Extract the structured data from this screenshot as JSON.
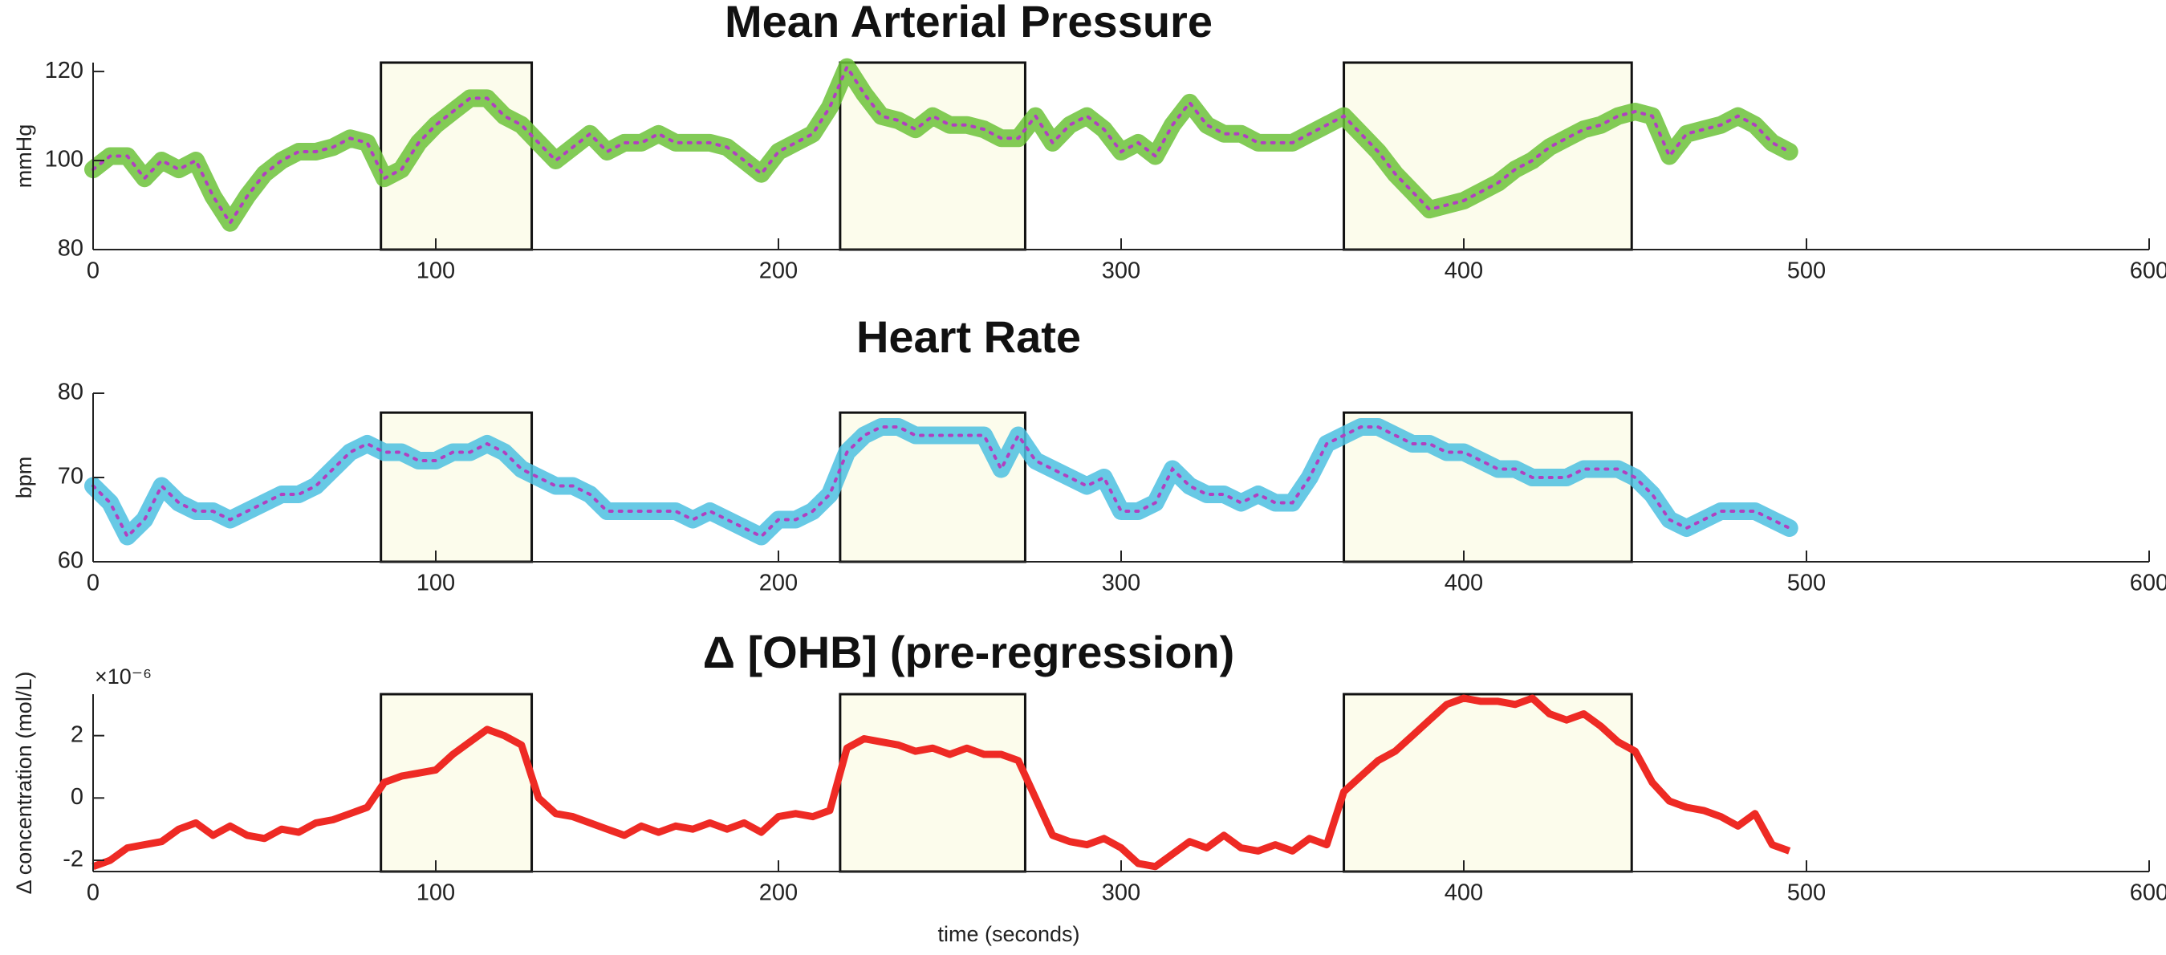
{
  "chart_data": [
    {
      "type": "line",
      "title": "Mean Arterial Pressure",
      "ylabel": "mmHg",
      "x": [
        0,
        5,
        10,
        15,
        20,
        25,
        30,
        35,
        40,
        45,
        50,
        55,
        60,
        65,
        70,
        75,
        80,
        85,
        90,
        95,
        100,
        105,
        110,
        115,
        120,
        125,
        130,
        135,
        140,
        145,
        150,
        155,
        160,
        165,
        170,
        175,
        180,
        185,
        190,
        195,
        200,
        205,
        210,
        215,
        220,
        225,
        230,
        235,
        240,
        245,
        250,
        255,
        260,
        265,
        270,
        275,
        280,
        285,
        290,
        295,
        300,
        305,
        310,
        315,
        320,
        325,
        330,
        335,
        340,
        345,
        350,
        355,
        360,
        365,
        370,
        375,
        380,
        385,
        390,
        395,
        400,
        405,
        410,
        415,
        420,
        425,
        430,
        435,
        440,
        445,
        450,
        455,
        460,
        465,
        470,
        475,
        480,
        485,
        490,
        495
      ],
      "series": [
        {
          "color": "#6cc23a",
          "marker_color": "#b040c0",
          "values": [
            98,
            101,
            101,
            96,
            100,
            98,
            100,
            92,
            86,
            92,
            97,
            100,
            102,
            102,
            103,
            105,
            104,
            96,
            98,
            104,
            108,
            111,
            114,
            114,
            110,
            108,
            104,
            100,
            103,
            106,
            102,
            104,
            104,
            106,
            104,
            104,
            104,
            103,
            100,
            97,
            102,
            104,
            106,
            112,
            121,
            115,
            110,
            109,
            107,
            110,
            108,
            108,
            107,
            105,
            105,
            110,
            104,
            108,
            110,
            107,
            102,
            104,
            101,
            108,
            113,
            108,
            106,
            106,
            104,
            104,
            104,
            106,
            108,
            110,
            106,
            102,
            97,
            93,
            89,
            90,
            91,
            93,
            95,
            98,
            100,
            103,
            105,
            107,
            108,
            110,
            111,
            110,
            101,
            106,
            107,
            108,
            110,
            108,
            104,
            102
          ]
        }
      ],
      "xlim": [
        0,
        600
      ],
      "xticks": [
        0,
        100,
        200,
        300,
        400,
        500,
        600
      ],
      "ylim": [
        80,
        122
      ],
      "yticks": [
        80,
        100,
        120
      ],
      "highlight_x": [
        [
          84,
          128
        ],
        [
          218,
          272
        ],
        [
          365,
          449
        ]
      ],
      "highlight_top": 122
    },
    {
      "type": "line",
      "title": "Heart Rate",
      "ylabel": "bpm",
      "x": [
        0,
        5,
        10,
        15,
        20,
        25,
        30,
        35,
        40,
        45,
        50,
        55,
        60,
        65,
        70,
        75,
        80,
        85,
        90,
        95,
        100,
        105,
        110,
        115,
        120,
        125,
        130,
        135,
        140,
        145,
        150,
        155,
        160,
        165,
        170,
        175,
        180,
        185,
        190,
        195,
        200,
        205,
        210,
        215,
        220,
        225,
        230,
        235,
        240,
        245,
        250,
        255,
        260,
        265,
        270,
        275,
        280,
        285,
        290,
        295,
        300,
        305,
        310,
        315,
        320,
        325,
        330,
        335,
        340,
        345,
        350,
        355,
        360,
        365,
        370,
        375,
        380,
        385,
        390,
        395,
        400,
        405,
        410,
        415,
        420,
        425,
        430,
        435,
        440,
        445,
        450,
        455,
        460,
        465,
        470,
        475,
        480,
        485,
        490,
        495
      ],
      "series": [
        {
          "color": "#4cc0e0",
          "marker_color": "#b040c0",
          "values": [
            69,
            67,
            63,
            65,
            69,
            67,
            66,
            66,
            65,
            66,
            67,
            68,
            68,
            69,
            71,
            73,
            74,
            73,
            73,
            72,
            72,
            73,
            73,
            74,
            73,
            71,
            70,
            69,
            69,
            68,
            66,
            66,
            66,
            66,
            66,
            65,
            66,
            65,
            64,
            63,
            65,
            65,
            66,
            68,
            73,
            75,
            76,
            76,
            75,
            75,
            75,
            75,
            75,
            71,
            75,
            72,
            71,
            70,
            69,
            70,
            66,
            66,
            67,
            71,
            69,
            68,
            68,
            67,
            68,
            67,
            67,
            70,
            74,
            75,
            76,
            76,
            75,
            74,
            74,
            73,
            73,
            72,
            71,
            71,
            70,
            70,
            70,
            71,
            71,
            71,
            70,
            68,
            65,
            64,
            65,
            66,
            66,
            66,
            65,
            64
          ]
        }
      ],
      "xlim": [
        0,
        600
      ],
      "xticks": [
        0,
        100,
        200,
        300,
        400,
        500,
        600
      ],
      "ylim": [
        60,
        80
      ],
      "yticks": [
        60,
        70,
        80
      ],
      "highlight_x": [
        [
          84,
          128
        ],
        [
          218,
          272
        ],
        [
          365,
          449
        ]
      ],
      "highlight_top": 77.7
    },
    {
      "type": "line",
      "title": "Δ [OHB] (pre-regression)",
      "ylabel": "Δ concentration (mol/L)",
      "y_multiplier": "×10⁻⁶",
      "xlabel": "time (seconds)",
      "x": [
        0,
        5,
        10,
        15,
        20,
        25,
        30,
        35,
        40,
        45,
        50,
        55,
        60,
        65,
        70,
        75,
        80,
        85,
        90,
        95,
        100,
        105,
        110,
        115,
        120,
        125,
        130,
        135,
        140,
        145,
        150,
        155,
        160,
        165,
        170,
        175,
        180,
        185,
        190,
        195,
        200,
        205,
        210,
        215,
        220,
        225,
        230,
        235,
        240,
        245,
        250,
        255,
        260,
        265,
        270,
        275,
        280,
        285,
        290,
        295,
        300,
        305,
        310,
        315,
        320,
        325,
        330,
        335,
        340,
        345,
        350,
        355,
        360,
        365,
        370,
        375,
        380,
        385,
        390,
        395,
        400,
        405,
        410,
        415,
        420,
        425,
        430,
        435,
        440,
        445,
        450,
        455,
        460,
        465,
        470,
        475,
        480,
        485,
        490,
        495
      ],
      "series": [
        {
          "color": "#ee2a24",
          "values": [
            -2.2,
            -2,
            -1.6,
            -1.5,
            -1.4,
            -1,
            -0.8,
            -1.2,
            -0.9,
            -1.2,
            -1.3,
            -1,
            -1.1,
            -0.8,
            -0.7,
            -0.5,
            -0.3,
            0.5,
            0.7,
            0.8,
            0.9,
            1.4,
            1.8,
            2.2,
            2,
            1.7,
            0,
            -0.5,
            -0.6,
            -0.8,
            -1,
            -1.2,
            -0.9,
            -1.1,
            -0.9,
            -1,
            -0.8,
            -1,
            -0.8,
            -1.1,
            -0.6,
            -0.5,
            -0.6,
            -0.4,
            1.6,
            1.9,
            1.8,
            1.7,
            1.5,
            1.6,
            1.4,
            1.6,
            1.4,
            1.4,
            1.2,
            0,
            -1.2,
            -1.4,
            -1.5,
            -1.3,
            -1.6,
            -2.1,
            -2.2,
            -1.8,
            -1.4,
            -1.6,
            -1.2,
            -1.6,
            -1.7,
            -1.5,
            -1.7,
            -1.3,
            -1.5,
            0.2,
            0.7,
            1.2,
            1.5,
            2,
            2.5,
            3,
            3.2,
            3.1,
            3.1,
            3,
            3.2,
            2.7,
            2.5,
            2.7,
            2.3,
            1.8,
            1.5,
            0.5,
            -0.1,
            -0.3,
            -0.4,
            -0.6,
            -0.9,
            -0.5,
            -1.5,
            -1.7
          ]
        }
      ],
      "xlim": [
        0,
        600
      ],
      "xticks": [
        0,
        100,
        200,
        300,
        400,
        500,
        600
      ],
      "ylim": [
        -2.36,
        3.33
      ],
      "yticks": [
        -2,
        0,
        2
      ],
      "highlight_x": [
        [
          84,
          128
        ],
        [
          218,
          272
        ],
        [
          365,
          449
        ]
      ],
      "highlight_top": 3.33
    }
  ]
}
